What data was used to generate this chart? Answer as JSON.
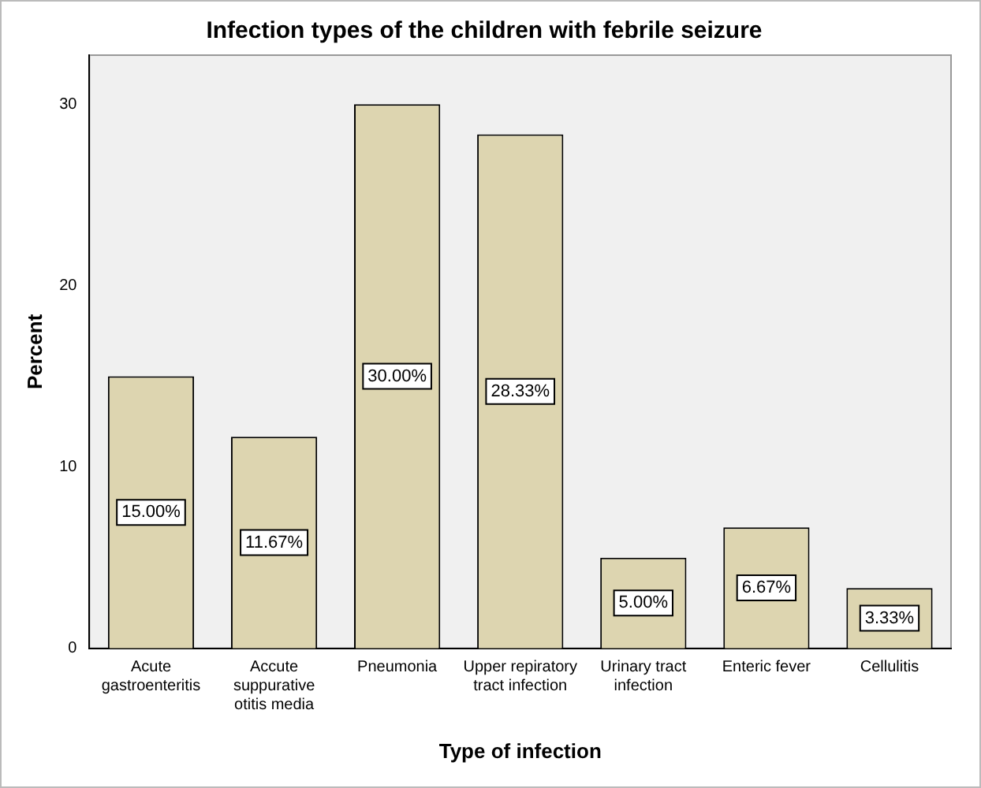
{
  "chart_data": {
    "type": "bar",
    "title": "Infection types of the children with febrile seizure",
    "xlabel": "Type of infection",
    "ylabel": "Percent",
    "categories": [
      "Acute gastroenteritis",
      "Accute suppurative otitis media",
      "Pneumonia",
      "Upper repiratory tract infection",
      "Urinary tract infection",
      "Enteric fever",
      "Cellulitis"
    ],
    "values": [
      15,
      11.67,
      30,
      28.33,
      5,
      6.67,
      3.33
    ],
    "value_labels": [
      "15.00%",
      "11.67%",
      "30.00%",
      "28.33%",
      "5.00%",
      "6.67%",
      "3.33%"
    ],
    "color": "#ddd5b0",
    "ylim": [
      0,
      32.7
    ],
    "yticks": [
      0,
      10,
      20,
      30
    ],
    "grid": false,
    "legend": false
  }
}
